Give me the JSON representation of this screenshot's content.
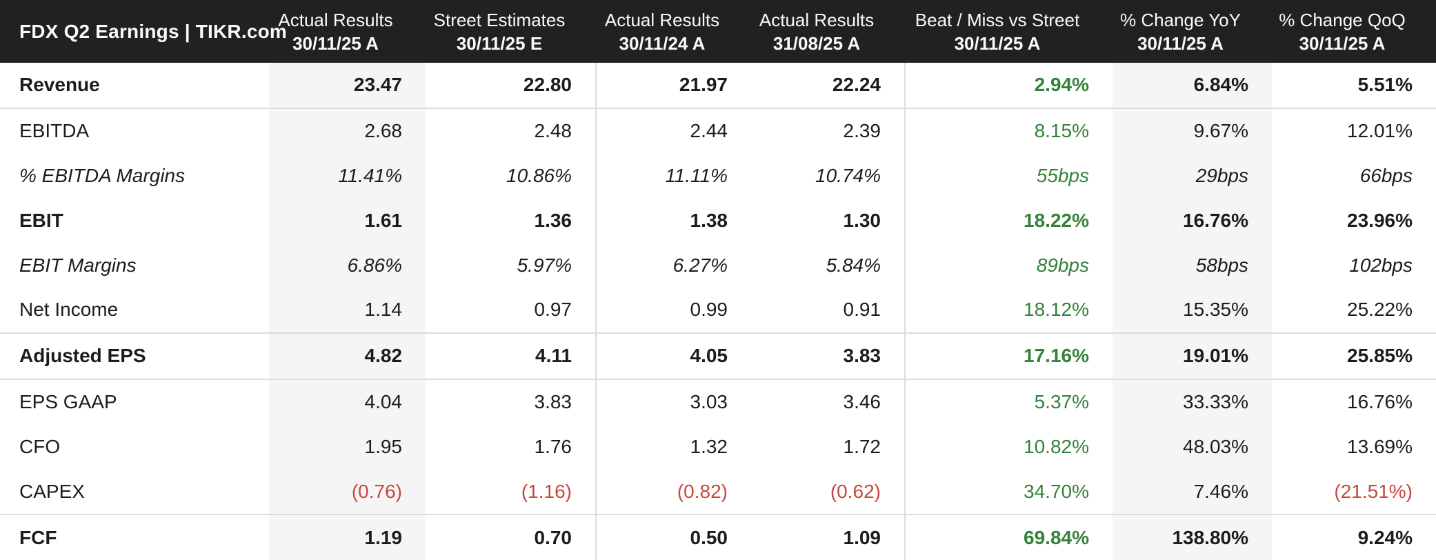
{
  "chart_data": {
    "type": "table",
    "title": "FDX Q2 Earnings | TIKR.com",
    "columns": [
      {
        "label": "Actual Results",
        "period": "30/11/25 A"
      },
      {
        "label": "Street Estimates",
        "period": "30/11/25 E"
      },
      {
        "label": "Actual Results",
        "period": "30/11/24 A"
      },
      {
        "label": "Actual Results",
        "period": "31/08/25 A"
      },
      {
        "label": "Beat / Miss vs Street",
        "period": "30/11/25 A"
      },
      {
        "label": "% Change YoY",
        "period": "30/11/25 A"
      },
      {
        "label": "% Change QoQ",
        "period": "30/11/25 A"
      }
    ],
    "rows": [
      {
        "label": "Revenue",
        "emphasis": "bold",
        "section_divider_after": true,
        "values": [
          "23.47",
          "22.80",
          "21.97",
          "22.24",
          "2.94%",
          "6.84%",
          "5.51%"
        ],
        "value_colors": [
          "default",
          "default",
          "default",
          "default",
          "green",
          "default",
          "default"
        ]
      },
      {
        "label": "EBITDA",
        "emphasis": "normal",
        "section_divider_after": false,
        "values": [
          "2.68",
          "2.48",
          "2.44",
          "2.39",
          "8.15%",
          "9.67%",
          "12.01%"
        ],
        "value_colors": [
          "default",
          "default",
          "default",
          "default",
          "green",
          "default",
          "default"
        ]
      },
      {
        "label": "% EBITDA Margins",
        "emphasis": "italic",
        "section_divider_after": false,
        "values": [
          "11.41%",
          "10.86%",
          "11.11%",
          "10.74%",
          "55bps",
          "29bps",
          "66bps"
        ],
        "value_colors": [
          "default",
          "default",
          "default",
          "default",
          "green",
          "default",
          "default"
        ]
      },
      {
        "label": "EBIT",
        "emphasis": "bold",
        "section_divider_after": false,
        "values": [
          "1.61",
          "1.36",
          "1.38",
          "1.30",
          "18.22%",
          "16.76%",
          "23.96%"
        ],
        "value_colors": [
          "default",
          "default",
          "default",
          "default",
          "green",
          "default",
          "default"
        ]
      },
      {
        "label": "EBIT Margins",
        "emphasis": "italic",
        "section_divider_after": false,
        "values": [
          "6.86%",
          "5.97%",
          "6.27%",
          "5.84%",
          "89bps",
          "58bps",
          "102bps"
        ],
        "value_colors": [
          "default",
          "default",
          "default",
          "default",
          "green",
          "default",
          "default"
        ]
      },
      {
        "label": "Net Income",
        "emphasis": "normal",
        "section_divider_after": true,
        "values": [
          "1.14",
          "0.97",
          "0.99",
          "0.91",
          "18.12%",
          "15.35%",
          "25.22%"
        ],
        "value_colors": [
          "default",
          "default",
          "default",
          "default",
          "green",
          "default",
          "default"
        ]
      },
      {
        "label": "Adjusted EPS",
        "emphasis": "bold",
        "section_divider_after": true,
        "values": [
          "4.82",
          "4.11",
          "4.05",
          "3.83",
          "17.16%",
          "19.01%",
          "25.85%"
        ],
        "value_colors": [
          "default",
          "default",
          "default",
          "default",
          "green",
          "default",
          "default"
        ]
      },
      {
        "label": "EPS GAAP",
        "emphasis": "normal",
        "section_divider_after": false,
        "values": [
          "4.04",
          "3.83",
          "3.03",
          "3.46",
          "5.37%",
          "33.33%",
          "16.76%"
        ],
        "value_colors": [
          "default",
          "default",
          "default",
          "default",
          "green",
          "default",
          "default"
        ]
      },
      {
        "label": "CFO",
        "emphasis": "normal",
        "section_divider_after": false,
        "values": [
          "1.95",
          "1.76",
          "1.32",
          "1.72",
          "10.82%",
          "48.03%",
          "13.69%"
        ],
        "value_colors": [
          "default",
          "default",
          "default",
          "default",
          "green",
          "default",
          "default"
        ]
      },
      {
        "label": "CAPEX",
        "emphasis": "normal",
        "section_divider_after": true,
        "values": [
          "(0.76)",
          "(1.16)",
          "(0.82)",
          "(0.62)",
          "34.70%",
          "7.46%",
          "(21.51%)"
        ],
        "value_colors": [
          "red",
          "red",
          "red",
          "red",
          "green",
          "default",
          "red"
        ]
      },
      {
        "label": "FCF",
        "emphasis": "bold",
        "section_divider_after": false,
        "values": [
          "1.19",
          "0.70",
          "0.50",
          "1.09",
          "69.84%",
          "138.80%",
          "9.24%"
        ],
        "value_colors": [
          "default",
          "default",
          "default",
          "default",
          "green",
          "default",
          "default"
        ]
      }
    ],
    "colors": {
      "header_bg": "#212121",
      "header_text": "#fafafa",
      "body_text": "#1c1c1c",
      "positive_green": "#35823a",
      "negative_red": "#c8463f",
      "highlight_column_bg": "#f5f5f5",
      "divider": "#dcdcdc"
    },
    "layout_hints": {
      "highlighted_columns": [
        "Actual Results 30/11/25 A",
        "% Change YoY 30/11/25 A"
      ],
      "vertical_separators_after": [
        "Street Estimates 30/11/25 E",
        "Actual Results 31/08/25 A"
      ]
    }
  }
}
